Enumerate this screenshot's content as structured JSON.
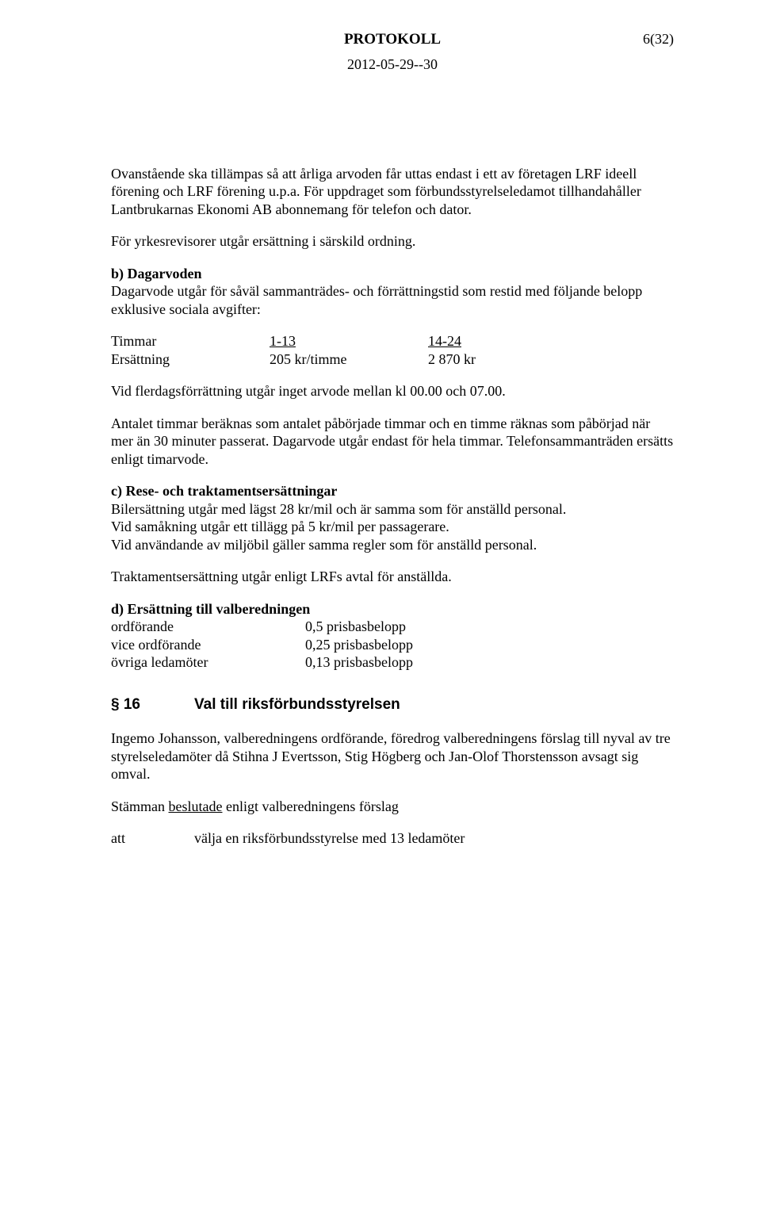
{
  "header": {
    "title": "PROTOKOLL",
    "page_number": "6(32)",
    "date": "2012-05-29--30"
  },
  "p1": "Ovanstående ska tillämpas så att årliga arvoden får uttas endast i ett av företagen LRF ideell förening och LRF förening u.p.a.",
  "p1b": " För uppdraget som förbundsstyrelseledamot tillhandahåller Lantbrukarnas Ekonomi AB abonnemang för telefon och dator.",
  "p2": "För yrkesrevisorer utgår ersättning i särskild ordning.",
  "b_heading": "b) Dagarvoden",
  "b_text": "Dagarvode utgår för såväl sammanträdes- och förrättningstid som restid med följande belopp exklusive sociala avgifter:",
  "table": {
    "r1c1": "Timmar",
    "r1c2": "1-13",
    "r1c3": "14-24",
    "r2c1": "Ersättning",
    "r2c2": "205 kr/timme",
    "r2c3": "2 870 kr"
  },
  "p3": "Vid flerdagsförrättning utgår inget arvode mellan kl 00.00 och 07.00.",
  "p4": "Antalet timmar beräknas som antalet påbörjade timmar och en timme räknas som påbörjad när mer än 30 minuter passerat. Dagarvode utgår endast för hela timmar. Telefonsammanträden ersätts enligt timarvode.",
  "c_heading": "c) Rese- och traktamentsersättningar",
  "c_l1": "Bilersättning utgår med lägst 28 kr/mil och är samma som för anställd personal.",
  "c_l2": "Vid samåkning utgår ett tillägg på 5 kr/mil per passagerare.",
  "c_l3": "Vid användande av miljöbil gäller samma regler som för anställd personal.",
  "c_l4": "Traktamentsersättning utgår enligt LRFs avtal för anställda.",
  "d_heading": "d) Ersättning till valberedningen",
  "d_rows": {
    "r1l": "ordförande",
    "r1r": "0,5 prisbasbelopp",
    "r2l": "vice ordförande",
    "r2r": "0,25 prisbasbelopp",
    "r3l": "övriga ledamöter",
    "r3r": "0,13 prisbasbelopp"
  },
  "s16": {
    "num": "§ 16",
    "title": "Val till riksförbundsstyrelsen",
    "p1": "Ingemo Johansson, valberedningens ordförande, föredrog valberedningens förslag till nyval av tre styrelseledamöter då Stihna J Evertsson, Stig Högberg och Jan-Olof Thorstensson avsagt sig omval.",
    "p2a": "Stämman ",
    "p2b": "beslutade",
    "p2c": " enligt valberedningens förslag",
    "att_label": "att",
    "att_text": "välja en riksförbundsstyrelse med 13 ledamöter"
  }
}
